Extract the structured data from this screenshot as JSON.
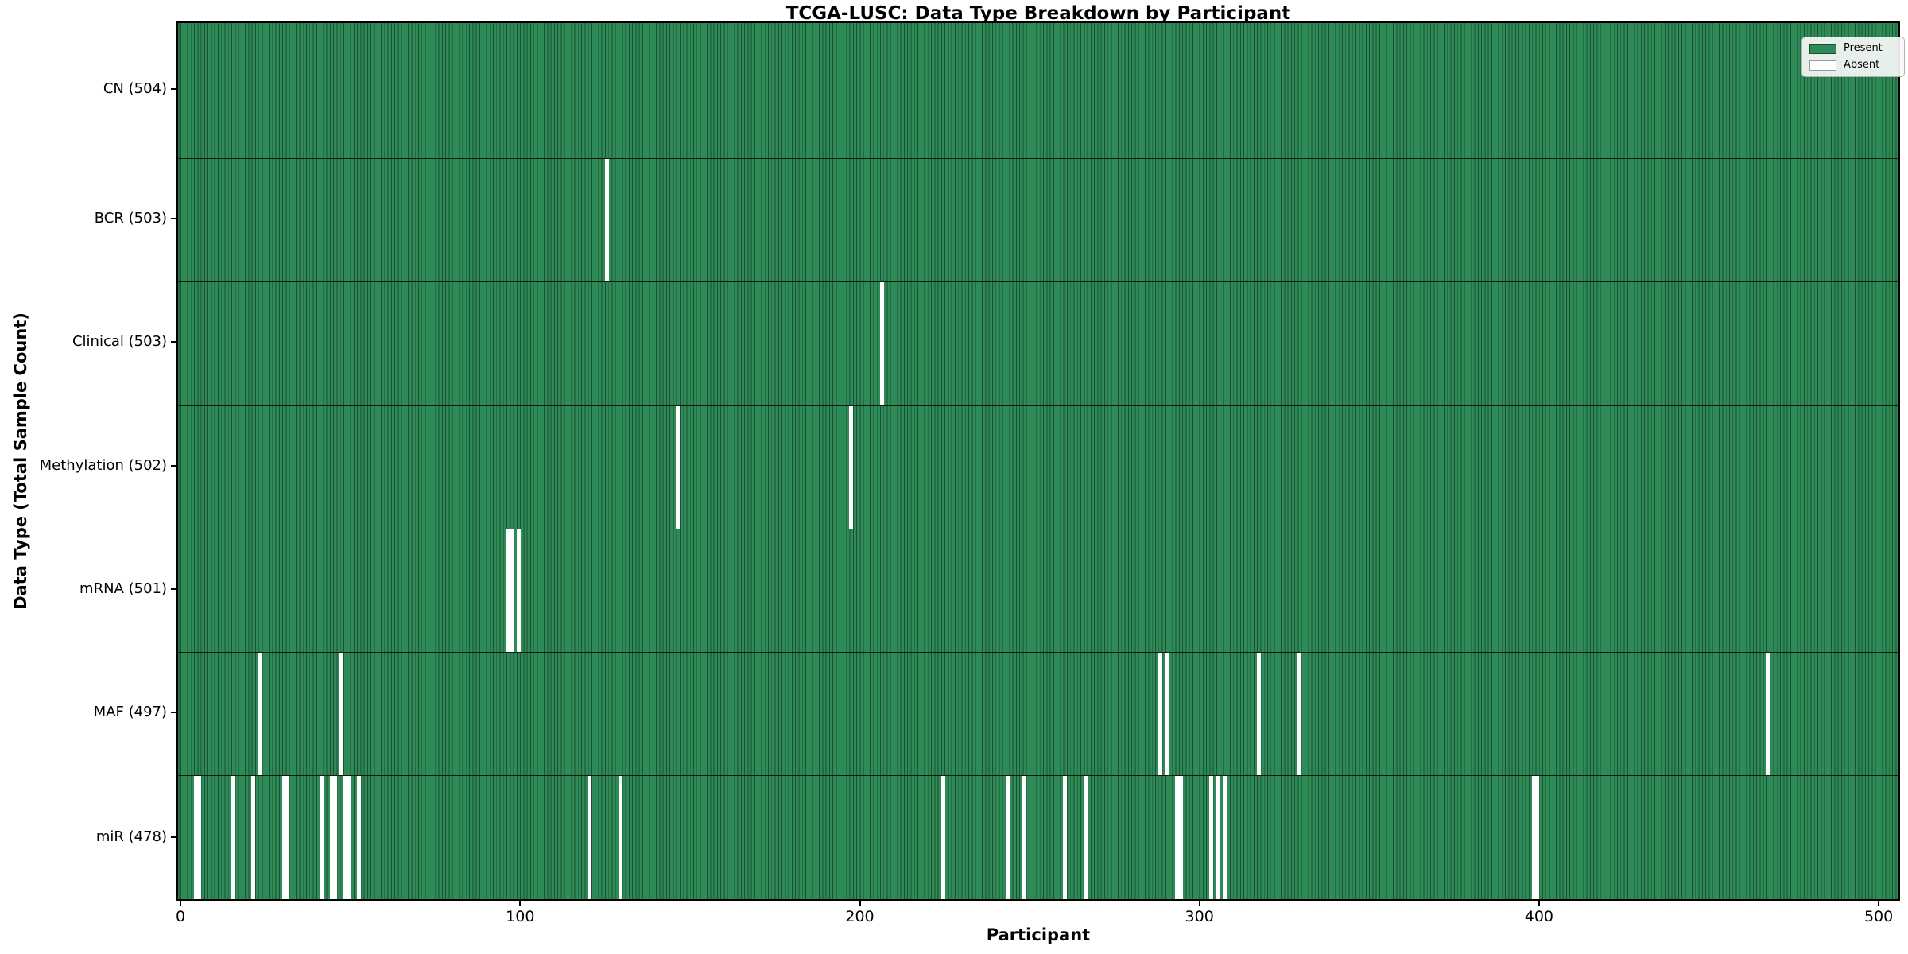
{
  "chart_data": {
    "type": "heatmap",
    "title": "TCGA-LUSC: Data Type Breakdown by Participant",
    "xlabel": "Participant",
    "ylabel": "Data Type (Total Sample Count)",
    "n_participants": 504,
    "x_ticks": [
      0,
      100,
      200,
      300,
      400,
      500
    ],
    "xlim": [
      -1.5,
      506
    ],
    "grid": false,
    "legend_position": "upper right",
    "colors": {
      "present": "#2e8b57",
      "absent": "#ffffff",
      "bar_edge": "rgba(0,0,0,0.42)"
    },
    "legend": [
      {
        "label": "Present",
        "color": "#2e8b57"
      },
      {
        "label": "Absent",
        "color": "#ffffff"
      }
    ],
    "rows": [
      {
        "data_type": "CN",
        "label": "CN (504)",
        "total": 504,
        "absent_participants": []
      },
      {
        "data_type": "BCR",
        "label": "BCR (503)",
        "total": 503,
        "absent_participants": [
          125
        ]
      },
      {
        "data_type": "Clinical",
        "label": "Clinical (503)",
        "total": 503,
        "absent_participants": [
          206
        ]
      },
      {
        "data_type": "Methylation",
        "label": "Methylation (502)",
        "total": 502,
        "absent_participants": [
          146,
          197
        ]
      },
      {
        "data_type": "mRNA",
        "label": "mRNA (501)",
        "total": 501,
        "absent_participants": [
          96,
          97,
          99
        ]
      },
      {
        "data_type": "MAF",
        "label": "MAF (497)",
        "total": 497,
        "absent_participants": [
          23,
          47,
          288,
          290,
          317,
          329,
          467
        ]
      },
      {
        "data_type": "miR",
        "label": "miR (478)",
        "total": 478,
        "absent_participants": [
          4,
          5,
          15,
          21,
          30,
          31,
          41,
          44,
          45,
          48,
          49,
          52,
          120,
          129,
          224,
          243,
          248,
          260,
          266,
          293,
          294,
          303,
          305,
          307,
          398,
          399
        ]
      }
    ]
  }
}
